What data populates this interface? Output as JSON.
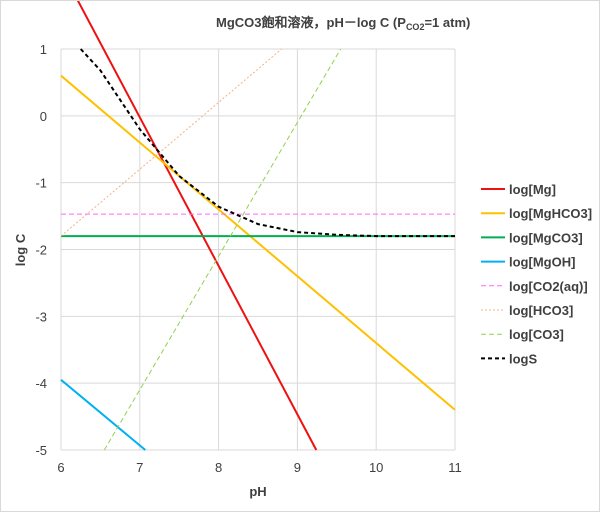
{
  "chart_data": {
    "type": "line",
    "title": "MgCO3飽和溶液，pH－log C (P",
    "title_sub": "CO2",
    "title_end": "=1 atm)",
    "xlabel": "pH",
    "ylabel": "log C",
    "xlim": [
      6,
      11
    ],
    "ylim": [
      -5,
      1
    ],
    "xticks": [
      "6",
      "7",
      "8",
      "9",
      "10",
      "11"
    ],
    "yticks": [
      "1",
      "0",
      "-1",
      "-2",
      "-3",
      "-4",
      "-5"
    ],
    "grid": true,
    "legend_position": "right",
    "series": [
      {
        "name": "log[Mg]",
        "color": "#ee1111",
        "style": "solid",
        "width": 2,
        "x": [
          6,
          9.24
        ],
        "y": [
          2.2,
          -5
        ]
      },
      {
        "name": "log[MgHCO3]",
        "color": "#ffc000",
        "style": "solid",
        "width": 2,
        "x": [
          6,
          11
        ],
        "y": [
          0.6,
          -4.4
        ]
      },
      {
        "name": "log[MgCO3]",
        "color": "#00b050",
        "style": "solid",
        "width": 2,
        "x": [
          6,
          11
        ],
        "y": [
          -1.8,
          -1.8
        ]
      },
      {
        "name": "log[MgOH]",
        "color": "#00b0f0",
        "style": "solid",
        "width": 2,
        "x": [
          6,
          7.07
        ],
        "y": [
          -3.95,
          -5
        ]
      },
      {
        "name": "log[CO2(aq)]",
        "color": "#ff66ff",
        "style": "dashed",
        "width": 1,
        "x": [
          6,
          11
        ],
        "y": [
          -1.47,
          -1.47
        ]
      },
      {
        "name": "log[HCO3]",
        "color": "#f4b183",
        "style": "dotted",
        "width": 1,
        "x": [
          6,
          8.8
        ],
        "y": [
          -1.8,
          1
        ]
      },
      {
        "name": "log[CO3]",
        "color": "#92d050",
        "style": "dashed",
        "width": 1,
        "x": [
          6.55,
          9.55
        ],
        "y": [
          -5,
          1
        ]
      },
      {
        "name": "logS",
        "color": "#000000",
        "style": "dashed",
        "width": 2,
        "x": [
          6.25,
          6.5,
          7.0,
          7.5,
          8.0,
          8.5,
          9.0,
          9.5,
          10.0,
          11.0
        ],
        "y": [
          1.0,
          0.68,
          -0.2,
          -0.9,
          -1.36,
          -1.62,
          -1.74,
          -1.78,
          -1.8,
          -1.8
        ]
      }
    ]
  }
}
